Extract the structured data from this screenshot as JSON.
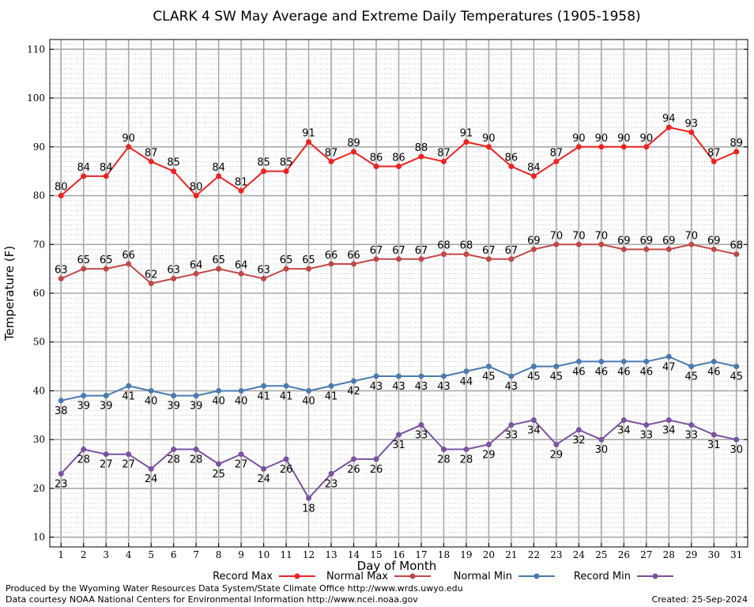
{
  "chart_data": {
    "type": "line",
    "title": "CLARK 4 SW May Average and Extreme Daily Temperatures (1905-1958)",
    "xlabel": "Day of Month",
    "ylabel": "Temperature (F)",
    "xlim": [
      0.5,
      31.5
    ],
    "ylim": [
      8,
      112
    ],
    "yticks": [
      10,
      20,
      30,
      40,
      50,
      60,
      70,
      80,
      90,
      100,
      110
    ],
    "x": [
      1,
      2,
      3,
      4,
      5,
      6,
      7,
      8,
      9,
      10,
      11,
      12,
      13,
      14,
      15,
      16,
      17,
      18,
      19,
      20,
      21,
      22,
      23,
      24,
      25,
      26,
      27,
      28,
      29,
      30,
      31
    ],
    "grid": true,
    "legend_position": "bottom",
    "series": [
      {
        "name": "Record Max",
        "color": "#ee2222",
        "label_position": "above",
        "values": [
          80,
          84,
          84,
          90,
          87,
          85,
          80,
          84,
          81,
          85,
          85,
          91,
          87,
          89,
          86,
          86,
          88,
          87,
          91,
          90,
          86,
          84,
          87,
          90,
          90,
          90,
          90,
          94,
          93,
          87,
          89
        ]
      },
      {
        "name": "Normal Max",
        "color": "#c04848",
        "label_position": "above",
        "values": [
          63,
          65,
          65,
          66,
          62,
          63,
          64,
          65,
          64,
          63,
          65,
          65,
          66,
          66,
          67,
          67,
          67,
          68,
          68,
          67,
          67,
          69,
          70,
          70,
          70,
          69,
          69,
          69,
          70,
          69,
          68
        ]
      },
      {
        "name": "Normal Min",
        "color": "#4a7ab0",
        "label_position": "below",
        "values": [
          38,
          39,
          39,
          41,
          40,
          39,
          39,
          40,
          40,
          41,
          41,
          40,
          41,
          42,
          43,
          43,
          43,
          43,
          44,
          45,
          43,
          45,
          45,
          46,
          46,
          46,
          46,
          47,
          45,
          46,
          45
        ]
      },
      {
        "name": "Record Min",
        "color": "#7a52a0",
        "label_position": "below",
        "values": [
          23,
          28,
          27,
          27,
          24,
          28,
          28,
          25,
          27,
          24,
          26,
          18,
          23,
          26,
          26,
          31,
          33,
          28,
          28,
          29,
          33,
          34,
          29,
          32,
          30,
          34,
          33,
          34,
          33,
          31,
          30
        ]
      }
    ]
  },
  "footer": {
    "producer": "Produced by the Wyoming Water Resources Data System/State Climate Office http://www.wrds.uwyo.edu",
    "courtesy": "Data courtesy NOAA National Centers for Environmental Information http://www.ncei.noaa.gov",
    "created": "Created:  25-Sep-2024"
  }
}
